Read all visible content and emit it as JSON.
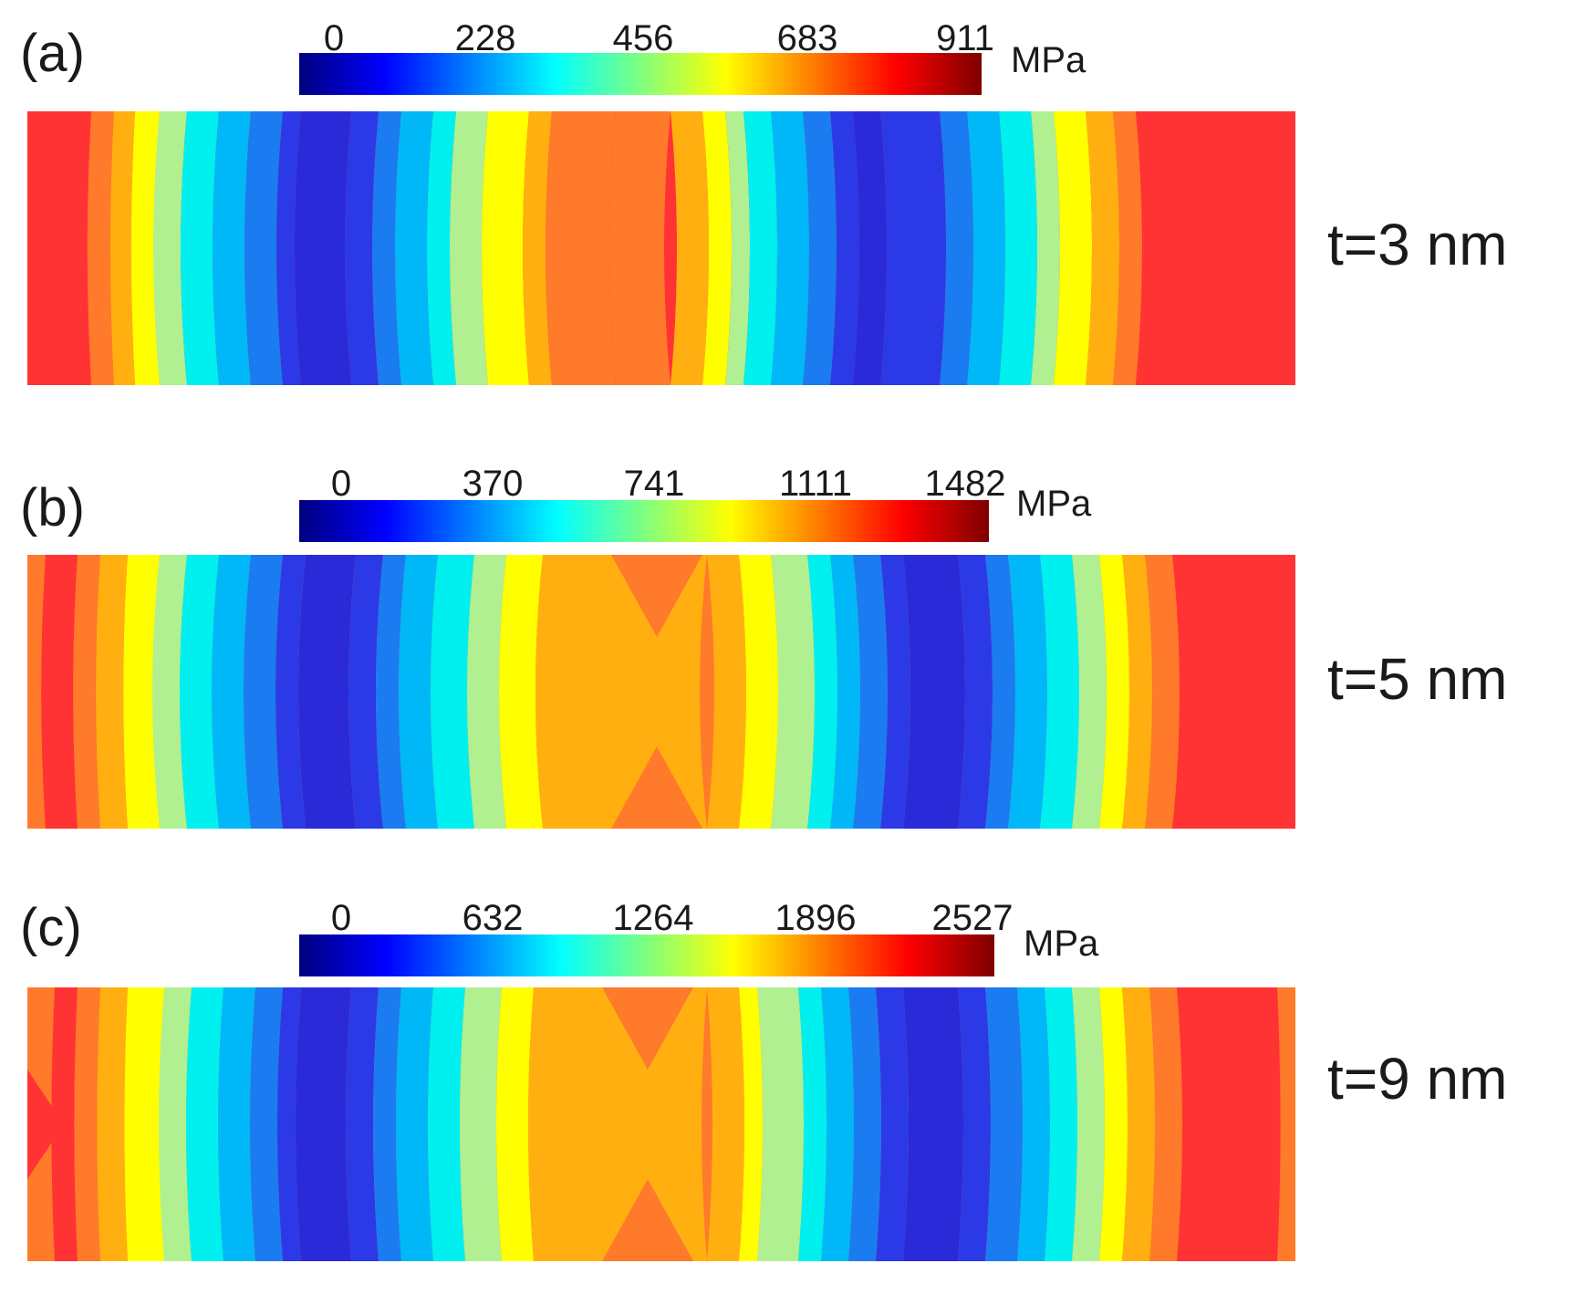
{
  "colorbar_unit": "MPa",
  "colormap": [
    "#00007f",
    "#0000ff",
    "#007fff",
    "#00ffff",
    "#7fff7f",
    "#ffff00",
    "#ff7f00",
    "#ff0000",
    "#7f0000"
  ],
  "band_palette": [
    "#ff3333",
    "#ff7a2a",
    "#ffb010",
    "#ffff00",
    "#b0f090",
    "#00f0f0",
    "#00b8f8",
    "#1a7cf0",
    "#2b3ae6",
    "#2a2ad8"
  ],
  "panels": [
    {
      "letter": "(a)",
      "thickness_label": "t=3 nm",
      "ticks": [
        "0",
        "228",
        "456",
        "683",
        "911"
      ]
    },
    {
      "letter": "(b)",
      "thickness_label": "t=5 nm",
      "ticks": [
        "0",
        "370",
        "741",
        "1111",
        "1482"
      ]
    },
    {
      "letter": "(c)",
      "thickness_label": "t=9 nm",
      "ticks": [
        "0",
        "632",
        "1264",
        "1896",
        "2527"
      ]
    }
  ]
}
